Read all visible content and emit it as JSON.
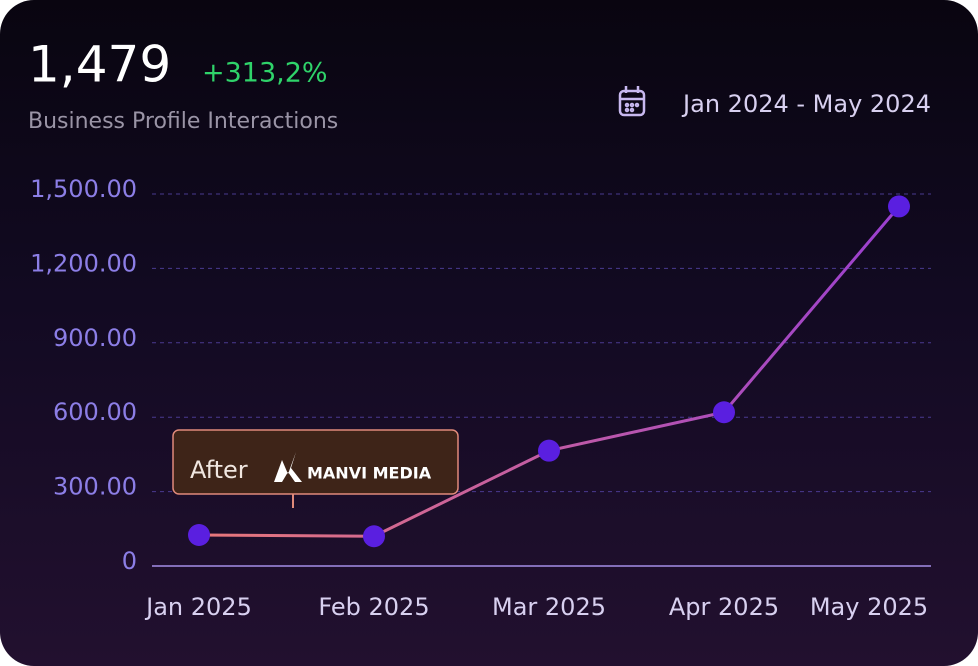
{
  "header": {
    "total": "1,479",
    "change": "+313,2%",
    "subtitle": "Business Profile Interactions",
    "date_range": "Jan 2024 - May 2024"
  },
  "chart_data": {
    "type": "line",
    "categories": [
      "Jan 2025",
      "Feb 2025",
      "Mar 2025",
      "Apr 2025",
      "May 2025"
    ],
    "values": [
      125,
      120,
      465,
      620,
      1450
    ],
    "line_colors": [
      "#e8787a",
      "#9a3fd0"
    ],
    "point_color": "#5a1fe0",
    "ylim": [
      0,
      1500
    ],
    "yticks": [
      0,
      {
        "value": 300,
        "label": "300.00"
      },
      {
        "value": 600,
        "label": "600.00"
      },
      {
        "value": 900,
        "label": "900.00"
      },
      {
        "value": 1200,
        "label": "1,200.00"
      },
      {
        "value": 1500,
        "label": "1,500.00"
      }
    ],
    "grid": true,
    "annotation": {
      "text": "After",
      "brand": "MANVI MEDIA"
    }
  }
}
